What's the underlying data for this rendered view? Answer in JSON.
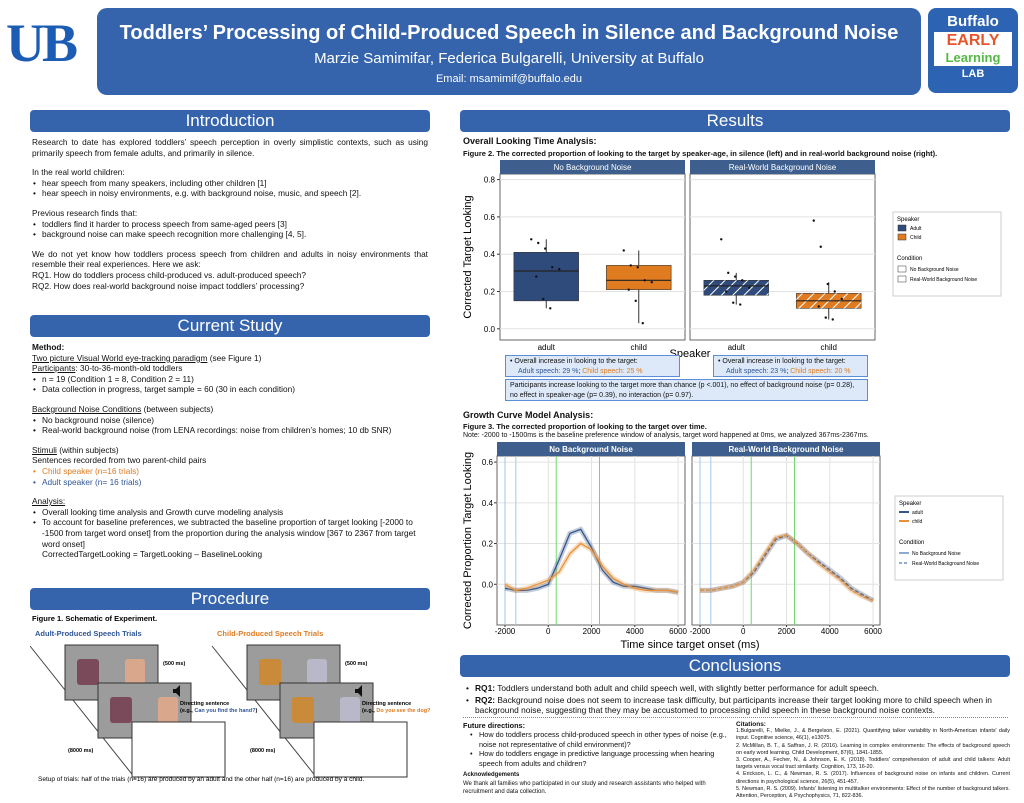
{
  "header": {
    "logo_left": "UB",
    "title": "Toddlers’ Processing of Child-Produced Speech in Silence and Background Noise",
    "authors": "Marzie Samimifar, Federica Bulgarelli, University at Buffalo",
    "email": "Email: msamimif@buffalo.edu",
    "logo_right": [
      "Buffalo",
      "EARLY",
      "Learning",
      "LAB"
    ]
  },
  "introduction": {
    "heading": "Introduction",
    "blocks": [
      "Research to date has explored toddlers’ speech perception in overly simplistic contexts, such as using primarily speech from female adults, and primarily in silence.",
      {
        "text": "In the real world children:",
        "bullets": [
          "hear speech from many speakers, including other children [1]",
          "hear speech in noisy environments, e.g. with background noise, music, and speech [2]."
        ]
      },
      {
        "text": "Previous research finds that:",
        "bullets": [
          "toddlers find it harder to process speech from same-aged peers [3]",
          "background noise can make speech recognition more challenging [4, 5]."
        ]
      },
      {
        "text": "We do not yet know how toddlers process speech from children and adults in noisy environments that resemble their real experiences. Here we ask:",
        "lines": [
          "RQ1. How do toddlers process child-produced vs. adult-produced speech?",
          "RQ2. How does real-world background noise impact toddlers’ processing?"
        ]
      }
    ]
  },
  "current_study": {
    "heading": "Current Study",
    "blocks": [
      {
        "title": "Method:",
        "rows": [
          {
            "head": "Two picture Visual World eye-tracking paradigm",
            "text": " (see Figure 1)"
          },
          {
            "head": "Participants",
            "text": ": 30-to-36-month-old toddlers"
          }
        ],
        "bullets": [
          "n = 19 (Condition 1 =  8, Condition 2 = 11)",
          "Data collection in progress, target sample = 60 (30 in each condition)"
        ]
      },
      {
        "rows": [
          {
            "head": "Background Noise Conditions",
            "text": " (between subjects)"
          }
        ],
        "bullets": [
          "No background noise (silence)",
          "Real-world background noise (from LENA recordings: noise from children’s homes; 10 db SNR)"
        ]
      },
      {
        "rows": [
          {
            "head": "Stimuli",
            "text": " (within subjects)"
          }
        ],
        "lines": [
          "Sentences recorded from two parent-child pairs"
        ],
        "bullets": [
          "Child speaker (n=16 trials)",
          "Adult speaker (n= 16 trials)"
        ],
        "bullet_colors": [
          "#e07b20",
          "#2f5597"
        ]
      },
      {
        "rows": [
          {
            "head": "Analysis:"
          }
        ],
        "bullets": [
          "Overall looking time analysis and Growth curve modeling analysis",
          "To account for baseline preferences, we subtracted the baseline proportion of target looking [-2000 to -1500 from target word onset] from the proportion during the analysis window [367 to 2367 from target word onset]"
        ],
        "notes": [
          "CorrectedTargetLooking = TargetLooking – BaselineLooking"
        ]
      }
    ]
  },
  "procedure": {
    "heading": "Procedure",
    "figure_caption": "Figure 1. Schematic of Experiment.",
    "trials": [
      {
        "label": "Adult-Produced Speech Trials",
        "color": "#2f5597",
        "fixation": "(500 ms)",
        "cue": "Directing sentence",
        "example": {
          "prefix": "(e.g., ",
          "text": "Can you find the hand?",
          "suffix": ")"
        },
        "duration": "(8000 ms)"
      },
      {
        "label": "Child-Produced Speech Trials",
        "color": "#e07b20",
        "fixation": "(500 ms)",
        "cue": "Directing sentence",
        "example": {
          "prefix": "(e.g., ",
          "text": "Do you see the dog?",
          "suffix": ")"
        },
        "duration": "(8000 ms)"
      }
    ],
    "caption": "Setup of trials: half of the trials (n=16) are produced by an adult and the other half (n=16) are produced by a child."
  },
  "results": {
    "heading": "Results",
    "overall_heading": "Overall Looking Time Analysis:",
    "figure2_caption": "Figure 2. The corrected proportion of looking to the target by speaker-age, in silence (left) and in real-world background noise (right).",
    "figure2": {
      "type": "box",
      "ylabel": "Corrected Target Looking",
      "xlabel": "Speaker",
      "ylim": [
        -0.06,
        0.83
      ],
      "yticks": [
        {
          "value": 0,
          "label": "0.0"
        },
        {
          "value": 0.2,
          "label": "0.2"
        },
        {
          "value": 0.4,
          "label": "0.4"
        },
        {
          "value": 0.6,
          "label": "0.6"
        },
        {
          "value": 0.8,
          "label": "0.8"
        }
      ],
      "grid": true,
      "panels": [
        {
          "title": "No Background Noise",
          "hatched": false,
          "categories": [
            "adult",
            "child"
          ],
          "boxes": [
            {
              "color": "#2f4b7c",
              "low": 0.11,
              "q1": 0.15,
              "median": 0.31,
              "q3": 0.41,
              "high": 0.48,
              "points": [
                0.48,
                0.46,
                0.43,
                0.33,
                0.32,
                0.28,
                0.16,
                0.11
              ]
            },
            {
              "color": "#e07b20",
              "low": 0.03,
              "q1": 0.21,
              "median": 0.26,
              "q3": 0.34,
              "high": 0.42,
              "points": [
                0.42,
                0.34,
                0.33,
                0.26,
                0.25,
                0.21,
                0.15,
                0.03
              ]
            }
          ]
        },
        {
          "title": "Real-World Background Noise",
          "hatched": true,
          "categories": [
            "adult",
            "child"
          ],
          "boxes": [
            {
              "color": "#2f4b7c",
              "low": 0.13,
              "q1": 0.18,
              "median": 0.23,
              "q3": 0.26,
              "high": 0.3,
              "points": [
                0.48,
                0.3,
                0.28,
                0.26,
                0.22,
                0.2,
                0.14,
                0.13
              ]
            },
            {
              "color": "#e07b20",
              "low": 0.05,
              "q1": 0.11,
              "median": 0.15,
              "q3": 0.19,
              "high": 0.25,
              "points": [
                0.58,
                0.44,
                0.24,
                0.2,
                0.16,
                0.12,
                0.06,
                0.05
              ]
            }
          ]
        }
      ],
      "legend": {
        "speaker_title": "Speaker",
        "speaker_items": [
          "Adult",
          "Child"
        ],
        "condition_title": "Condition",
        "condition_items": [
          "No Background Noise",
          "Real-World Background Noise"
        ]
      }
    },
    "summary": [
      {
        "lead": "• Overall increase in looking to the target:",
        "adult": "Adult speech: 29 %",
        "sep": "; ",
        "child": "Child speech: 25 %"
      },
      {
        "lead": "• Overall increase in looking to the target:",
        "adult": "Adult speech: 23 %",
        "sep": "; ",
        "child": "Child speech: 20 %"
      }
    ],
    "summary_note": "Participants increase looking to the target more than chance (p <.001), no effect of background noise (p= 0.28), no effect in speaker-age (p= 0.39), no interaction (p= 0.97).",
    "growth_heading": "Growth Curve Model Analysis:",
    "figure3_caption": "Figure 3. The corrected proportion of looking to the target over time.",
    "figure3_note": "Note: -2000 to -1500ms is the baseline preference window of analysis, target word happened at 0ms, we analyzed 367ms-2367ms.",
    "figure3": {
      "type": "line",
      "ylabel": "Corrected Proportion Target Looking",
      "xlabel": "Time since target onset (ms)",
      "xlim": [
        -2370,
        6320
      ],
      "ylim": [
        -0.2,
        0.63
      ],
      "xticks": [
        -2000,
        0,
        2000,
        4000,
        6000
      ],
      "yticks": [
        {
          "value": 0,
          "label": "0.0"
        },
        {
          "value": 0.2,
          "label": "0.2"
        },
        {
          "value": 0.4,
          "label": "0.4"
        },
        {
          "value": 0.6,
          "label": "0.6"
        }
      ],
      "grid": true,
      "baseline_window": [
        -2000,
        -1500
      ],
      "analysis_window": [
        367,
        2367
      ],
      "x": [
        -2000,
        -1500,
        -1000,
        -500,
        0,
        500,
        1000,
        1500,
        2000,
        2500,
        3000,
        3500,
        4000,
        4500,
        5000,
        5500,
        6000
      ],
      "panels": [
        {
          "title": "No Background Noise",
          "dashed": false,
          "series": [
            {
              "name": "adult",
              "color": "#34578a",
              "values": [
                -0.02,
                -0.03,
                -0.03,
                -0.02,
                0,
                0.12,
                0.25,
                0.27,
                0.18,
                0.07,
                0.01,
                -0.01,
                -0.01,
                -0.02,
                -0.03,
                -0.03,
                -0.04
              ]
            },
            {
              "name": "child",
              "color": "#e8913a",
              "values": [
                0,
                -0.03,
                -0.02,
                0,
                0.02,
                0.06,
                0.15,
                0.2,
                0.17,
                0.09,
                0.03,
                0,
                -0.02,
                -0.03,
                -0.03,
                -0.03,
                -0.04
              ]
            }
          ]
        },
        {
          "title": "Real-World Background Noise",
          "dashed": true,
          "series": [
            {
              "name": "adult",
              "color": "#34578a",
              "values": [
                -0.03,
                -0.03,
                -0.02,
                -0.01,
                0.01,
                0.06,
                0.14,
                0.22,
                0.24,
                0.2,
                0.15,
                0.11,
                0.07,
                0.03,
                -0.02,
                -0.05,
                -0.08
              ]
            },
            {
              "name": "child",
              "color": "#e8913a",
              "values": [
                -0.03,
                -0.03,
                -0.02,
                -0.01,
                0.01,
                0.07,
                0.15,
                0.23,
                0.24,
                0.2,
                0.15,
                0.1,
                0.06,
                0.02,
                -0.03,
                -0.06,
                -0.08
              ]
            }
          ]
        }
      ],
      "legend": {
        "speaker_title": "Speaker",
        "speaker_items": [
          "adult",
          "child"
        ],
        "condition_title": "Condition",
        "condition_items": [
          "No Background Noise",
          "Real-World Background Noise"
        ]
      }
    }
  },
  "conclusions": {
    "heading": "Conclusions",
    "bullets": [
      {
        "label": "RQ1:",
        "text": " Toddlers understand both adult and child speech well, with slightly better performance for adult speech."
      },
      {
        "label": "RQ2:",
        "text": " Background noise does not seem to increase task difficulty, but participants increase their target looking more to child speech when in background noise, suggesting that they may be accustomed to processing child speech in these background noise contexts."
      }
    ],
    "future_heading": "Future directions:",
    "future": [
      "How do toddlers process child-produced speech in other types of noise (e.g., noise not representative of child environment)?",
      "How do toddlers engage in predictive language processing when hearing speech from adults and children?"
    ],
    "ack_heading": "Acknowledgements",
    "ack": "We thank all families who participated in our study and research assistants who helped with recruitment and data collection.",
    "citations_heading": "Citations:",
    "citations": [
      "1.Bulgarelli, F., Mielke, J., & Bergelson, E. (2021). Quantifying talker variability in North-American infants' daily input. Cognitive science, 46(1), e13075.",
      "2. McMillan, B. T., & Saffran, J. R. (2016). Learning in complex environments: The effects of background speech on early word learning. Child Development, 87(6), 1841-1855.",
      "3. Cooper, A., Fecher, N., & Johnson, E. K. (2018). Toddlers' comprehension of adult and child talkers: Adult targets versus vocal tract similarity. Cognition, 173, 16-20.",
      "4. Erickson, L. C., & Newman, R. S. (2017). Influences of background noise on infants and children. Current directions in psychological science, 26(5), 451-457.",
      "5. Newman, R. S. (2009). Infants' listening in multitalker environments: Effect of the number of background talkers. Attention, Perception, & Psychophysics, 71, 822-836."
    ]
  }
}
